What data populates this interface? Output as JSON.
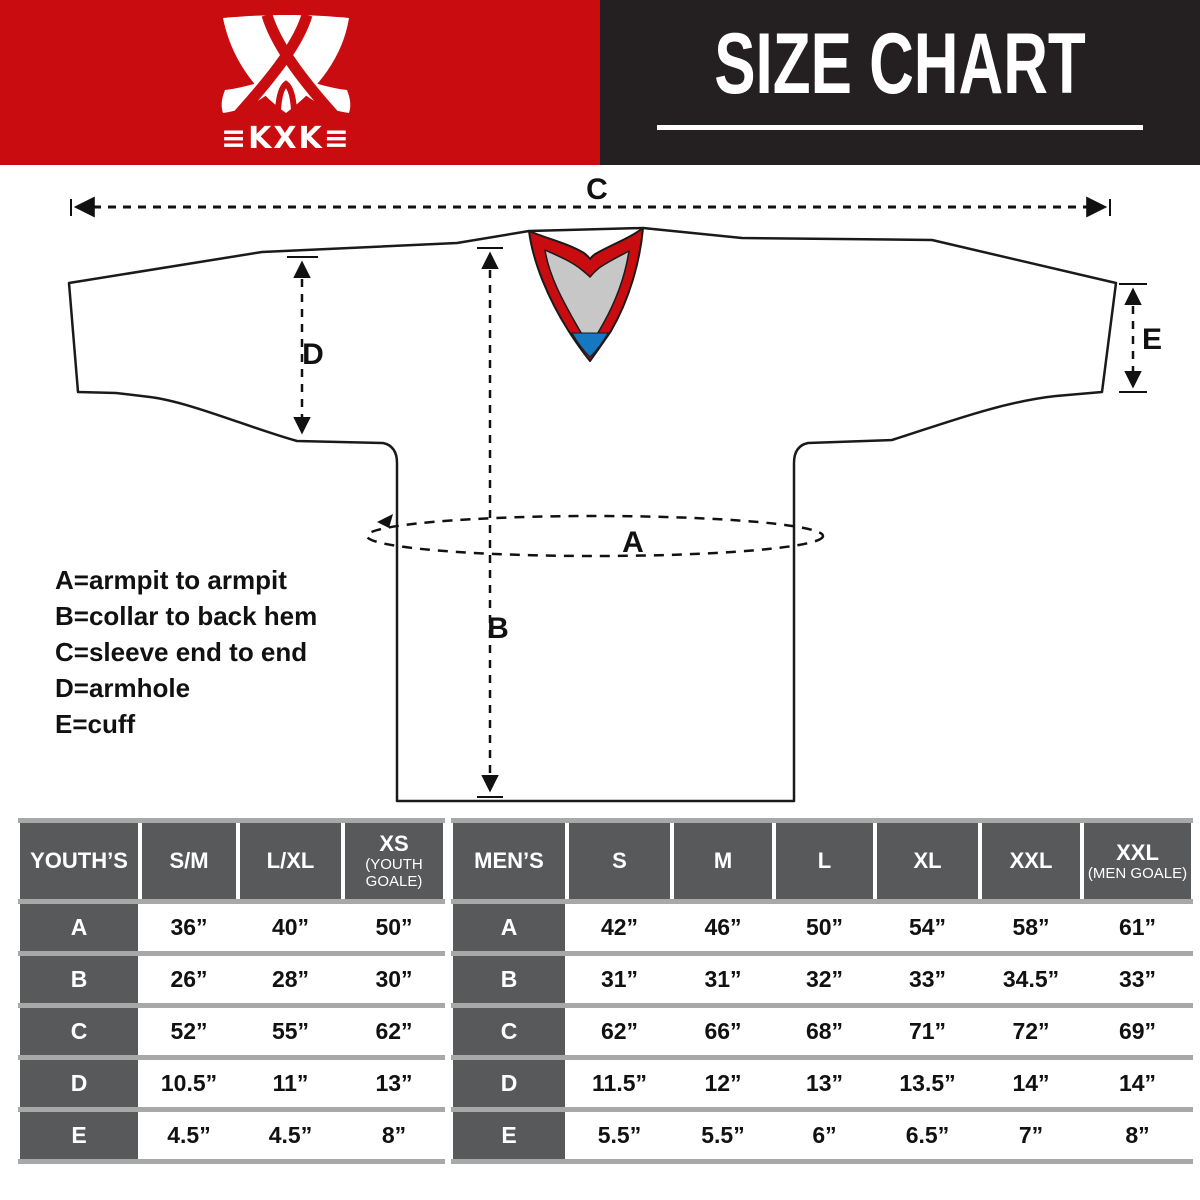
{
  "brand": {
    "logo_text": "≡KXK≡"
  },
  "header": {
    "title": "SIZE CHART"
  },
  "colors": {
    "red": "#c90c10",
    "black": "#241f20",
    "cell_gray": "#58595b",
    "grid_gray": "#a8a8a8",
    "collar_gray": "#c7c7c7",
    "collar_blue": "#1678c0"
  },
  "diagram": {
    "letters": {
      "A": "A",
      "B": "B",
      "C": "C",
      "D": "D",
      "E": "E"
    },
    "legend": [
      "A=armpit to armpit",
      "B=collar to back hem",
      "C=sleeve end to end",
      "D=armhole",
      "E=cuff"
    ]
  },
  "tables": {
    "youth": {
      "title": "YOUTH’S",
      "columns": [
        {
          "main": "S/M"
        },
        {
          "main": "L/XL"
        },
        {
          "main": "XS",
          "sub": "(YOUTH GOALE)"
        }
      ],
      "rows": [
        {
          "label": "A",
          "values": [
            "36”",
            "40”",
            "50”"
          ]
        },
        {
          "label": "B",
          "values": [
            "26”",
            "28”",
            "30”"
          ]
        },
        {
          "label": "C",
          "values": [
            "52”",
            "55”",
            "62”"
          ]
        },
        {
          "label": "D",
          "values": [
            "10.5”",
            "11”",
            "13”"
          ]
        },
        {
          "label": "E",
          "values": [
            "4.5”",
            "4.5”",
            "8”"
          ]
        }
      ]
    },
    "men": {
      "title": "MEN’S",
      "columns": [
        {
          "main": "S"
        },
        {
          "main": "M"
        },
        {
          "main": "L"
        },
        {
          "main": "XL"
        },
        {
          "main": "XXL"
        },
        {
          "main": "XXL",
          "sub": "(MEN GOALE)"
        }
      ],
      "rows": [
        {
          "label": "A",
          "values": [
            "42”",
            "46”",
            "50”",
            "54”",
            "58”",
            "61”"
          ]
        },
        {
          "label": "B",
          "values": [
            "31”",
            "31”",
            "32”",
            "33”",
            "34.5”",
            "33”"
          ]
        },
        {
          "label": "C",
          "values": [
            "62”",
            "66”",
            "68”",
            "71”",
            "72”",
            "69”"
          ]
        },
        {
          "label": "D",
          "values": [
            "11.5”",
            "12”",
            "13”",
            "13.5”",
            "14”",
            "14”"
          ]
        },
        {
          "label": "E",
          "values": [
            "5.5”",
            "5.5”",
            "6”",
            "6.5”",
            "7”",
            "8”"
          ]
        }
      ]
    }
  }
}
